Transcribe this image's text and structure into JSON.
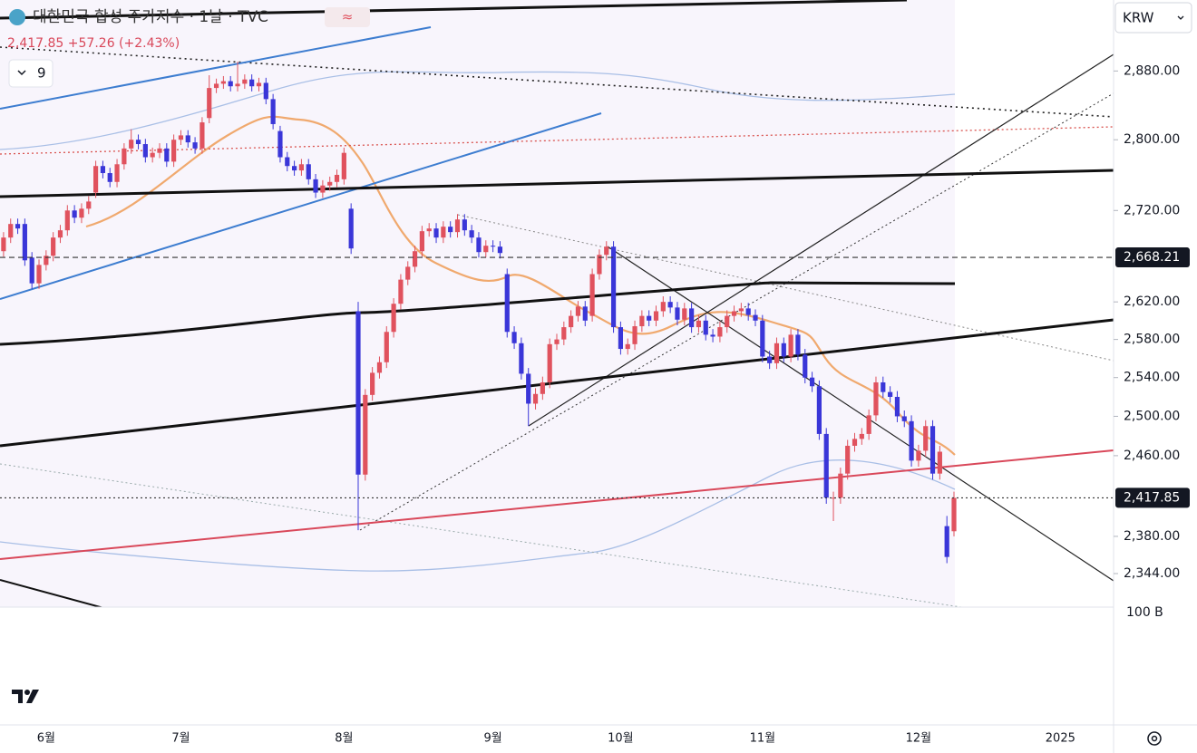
{
  "chart_data": {
    "type": "candlestick",
    "title": "대한민국 합성 주가지수 · 1날 · TVC",
    "subtitle": "2,417.85 +57.26 (+2.43%)",
    "indicator_count": "9",
    "currency": "KRW",
    "volume_axis_label": "100 B",
    "log_scale": true,
    "grid": false,
    "up_color": "#e0525e",
    "down_color": "#3a36d8",
    "ylim": [
      2312,
      2965
    ],
    "yticks": [
      {
        "value": 2880,
        "label": "2,880.00"
      },
      {
        "value": 2800,
        "label": "2,800.00"
      },
      {
        "value": 2720,
        "label": "2,720.00"
      },
      {
        "value": 2620,
        "label": "2,620.00"
      },
      {
        "value": 2580,
        "label": "2,580.00"
      },
      {
        "value": 2540,
        "label": "2,540.00"
      },
      {
        "value": 2500,
        "label": "2,500.00"
      },
      {
        "value": 2460,
        "label": "2,460.00"
      },
      {
        "value": 2380,
        "label": "2,380.00"
      },
      {
        "value": 2344,
        "label": "2,344.00"
      }
    ],
    "price_lines": [
      {
        "value": 2668.21,
        "label": "2,668.21"
      },
      {
        "value": 2417.85,
        "label": "2,417.85"
      }
    ],
    "categories": [
      null,
      null,
      null,
      null,
      null,
      null,
      "6월",
      null,
      null,
      null,
      null,
      null,
      null,
      null,
      null,
      null,
      null,
      null,
      null,
      null,
      null,
      null,
      null,
      null,
      null,
      "7월",
      null,
      null,
      null,
      null,
      null,
      null,
      null,
      null,
      null,
      null,
      null,
      null,
      null,
      null,
      null,
      null,
      null,
      null,
      null,
      null,
      null,
      null,
      "8월",
      null,
      null,
      null,
      null,
      null,
      null,
      null,
      null,
      null,
      null,
      null,
      null,
      null,
      null,
      null,
      null,
      null,
      null,
      null,
      null,
      "9월",
      null,
      null,
      null,
      null,
      null,
      null,
      null,
      null,
      null,
      null,
      null,
      null,
      null,
      null,
      null,
      null,
      null,
      "10월",
      null,
      null,
      null,
      null,
      null,
      null,
      null,
      null,
      null,
      null,
      null,
      null,
      null,
      null,
      null,
      null,
      null,
      null,
      null,
      "11월",
      null,
      null,
      null,
      null,
      null,
      null,
      null,
      null,
      null,
      null,
      null,
      null,
      null,
      null,
      null,
      null,
      null,
      null,
      null,
      null,
      null,
      "12월",
      null,
      null,
      null,
      null,
      null,
      null,
      null,
      null,
      null,
      null,
      null,
      null,
      null,
      null,
      null,
      null,
      null,
      null,
      null,
      "2025",
      null,
      null,
      null,
      null,
      null,
      null,
      null
    ],
    "open": [
      2675,
      2690,
      2705,
      2705,
      2668,
      2640,
      2660,
      2670,
      2690,
      2698,
      2720,
      2712,
      2722,
      2740,
      2770,
      2762,
      2752,
      2772,
      2790,
      2800,
      2795,
      2780,
      2785,
      2790,
      2775,
      2800,
      2805,
      2797,
      2790,
      2825,
      2860,
      2865,
      2868,
      2862,
      2865,
      2870,
      2862,
      2866,
      2847,
      2810,
      2780,
      2770,
      2765,
      2772,
      2755,
      2740,
      2748,
      2752,
      2755,
      2722,
      2610,
      2441,
      2522,
      2545,
      2556,
      2588,
      2618,
      2644,
      2658,
      2675,
      2697,
      2700,
      2690,
      2702,
      2696,
      2710,
      2698,
      2690,
      2674,
      2681,
      2680,
      2650,
      2588,
      2576,
      2544,
      2513,
      2523,
      2535,
      2575,
      2580,
      2593,
      2605,
      2615,
      2605,
      2650,
      2671,
      2680,
      2593,
      2570,
      2575,
      2594,
      2605,
      2600,
      2610,
      2620,
      2614,
      2601,
      2613,
      2593,
      2600,
      2585,
      2583,
      2593,
      2605,
      2610,
      2613,
      2606,
      2600,
      2562,
      2555,
      2576,
      2562,
      2585,
      2564,
      2540,
      2531,
      2482,
      2418,
      2418,
      2442,
      2470,
      2477,
      2482,
      2501,
      2535,
      2525,
      2520,
      2500,
      2495,
      2455,
      2465,
      2490,
      2442,
      2390,
      2385,
      null,
      null,
      null,
      null,
      null,
      null,
      null,
      null,
      null,
      null,
      null,
      null,
      null,
      null,
      null,
      null,
      null,
      null,
      null,
      null,
      null,
      null
    ],
    "high": [
      2696,
      2711,
      2711,
      2711,
      2674,
      2666,
      2676,
      2696,
      2704,
      2726,
      2726,
      2728,
      2736,
      2776,
      2776,
      2768,
      2778,
      2796,
      2812,
      2806,
      2801,
      2791,
      2796,
      2796,
      2806,
      2811,
      2811,
      2803,
      2826,
      2875,
      2871,
      2874,
      2874,
      2891,
      2876,
      2876,
      2872,
      2872,
      2853,
      2816,
      2786,
      2776,
      2778,
      2778,
      2761,
      2754,
      2758,
      2766,
      2791,
      2728,
      2620,
      2528,
      2551,
      2562,
      2594,
      2624,
      2650,
      2664,
      2681,
      2703,
      2706,
      2706,
      2708,
      2708,
      2716,
      2716,
      2704,
      2696,
      2687,
      2687,
      2686,
      2656,
      2594,
      2582,
      2550,
      2529,
      2541,
      2581,
      2586,
      2599,
      2611,
      2621,
      2621,
      2656,
      2677,
      2686,
      2686,
      2599,
      2581,
      2600,
      2611,
      2611,
      2616,
      2626,
      2626,
      2620,
      2619,
      2619,
      2606,
      2606,
      2591,
      2599,
      2611,
      2616,
      2619,
      2619,
      2612,
      2606,
      2568,
      2582,
      2582,
      2591,
      2591,
      2570,
      2546,
      2537,
      2488,
      2424,
      2448,
      2476,
      2483,
      2488,
      2507,
      2541,
      2541,
      2531,
      2526,
      2506,
      2501,
      2471,
      2496,
      2496,
      2470,
      2400,
      2424,
      null,
      null,
      null,
      null,
      null,
      null,
      null,
      null,
      null,
      null,
      null,
      null,
      null,
      null,
      null,
      null,
      null,
      null,
      null,
      null,
      null,
      null
    ],
    "low": [
      2669,
      2684,
      2694,
      2659,
      2634,
      2634,
      2654,
      2664,
      2684,
      2692,
      2706,
      2706,
      2716,
      2734,
      2756,
      2746,
      2746,
      2766,
      2784,
      2789,
      2774,
      2774,
      2779,
      2769,
      2769,
      2794,
      2791,
      2784,
      2784,
      2819,
      2854,
      2859,
      2856,
      2856,
      2859,
      2856,
      2856,
      2841,
      2812,
      2774,
      2764,
      2759,
      2759,
      2749,
      2734,
      2734,
      2742,
      2746,
      2749,
      2672,
      2386,
      2435,
      2516,
      2539,
      2550,
      2582,
      2612,
      2638,
      2652,
      2669,
      2691,
      2684,
      2684,
      2690,
      2690,
      2692,
      2684,
      2668,
      2668,
      2674,
      2667,
      2582,
      2570,
      2538,
      2490,
      2507,
      2517,
      2529,
      2569,
      2574,
      2587,
      2599,
      2594,
      2599,
      2644,
      2665,
      2587,
      2564,
      2564,
      2569,
      2588,
      2594,
      2594,
      2604,
      2608,
      2595,
      2595,
      2587,
      2587,
      2579,
      2577,
      2577,
      2587,
      2599,
      2604,
      2600,
      2594,
      2556,
      2549,
      2549,
      2556,
      2556,
      2558,
      2534,
      2525,
      2476,
      2412,
      2395,
      2412,
      2436,
      2464,
      2471,
      2476,
      2495,
      2519,
      2514,
      2494,
      2489,
      2449,
      2449,
      2459,
      2436,
      2436,
      2354,
      2380,
      null,
      null,
      null,
      null,
      null,
      null,
      null,
      null,
      null,
      null,
      null,
      null,
      null,
      null,
      null,
      null,
      null,
      null,
      null,
      null,
      null,
      null
    ],
    "close": [
      2690,
      2705,
      2700,
      2665,
      2640,
      2660,
      2670,
      2690,
      2698,
      2720,
      2712,
      2722,
      2730,
      2770,
      2762,
      2752,
      2772,
      2790,
      2800,
      2795,
      2780,
      2785,
      2790,
      2775,
      2800,
      2805,
      2797,
      2790,
      2820,
      2860,
      2865,
      2868,
      2862,
      2865,
      2870,
      2862,
      2866,
      2847,
      2818,
      2780,
      2770,
      2765,
      2772,
      2755,
      2740,
      2748,
      2752,
      2760,
      2785,
      2678,
      2441,
      2522,
      2545,
      2556,
      2588,
      2618,
      2644,
      2658,
      2675,
      2697,
      2700,
      2690,
      2702,
      2696,
      2710,
      2698,
      2690,
      2674,
      2681,
      2680,
      2673,
      2588,
      2576,
      2544,
      2513,
      2523,
      2535,
      2575,
      2580,
      2593,
      2605,
      2615,
      2600,
      2650,
      2671,
      2680,
      2593,
      2570,
      2575,
      2594,
      2605,
      2600,
      2610,
      2620,
      2614,
      2601,
      2613,
      2593,
      2600,
      2585,
      2583,
      2593,
      2605,
      2610,
      2613,
      2606,
      2600,
      2562,
      2555,
      2576,
      2562,
      2585,
      2564,
      2540,
      2531,
      2482,
      2418,
      2418,
      2442,
      2470,
      2477,
      2482,
      2501,
      2535,
      2525,
      2520,
      2500,
      2495,
      2455,
      2465,
      2490,
      2442,
      2464,
      2360,
      2417.85,
      null,
      null,
      null,
      null,
      null,
      null,
      null,
      null,
      null,
      null,
      null,
      null,
      null,
      null,
      null,
      null,
      null,
      null,
      null,
      null,
      null,
      null
    ]
  }
}
